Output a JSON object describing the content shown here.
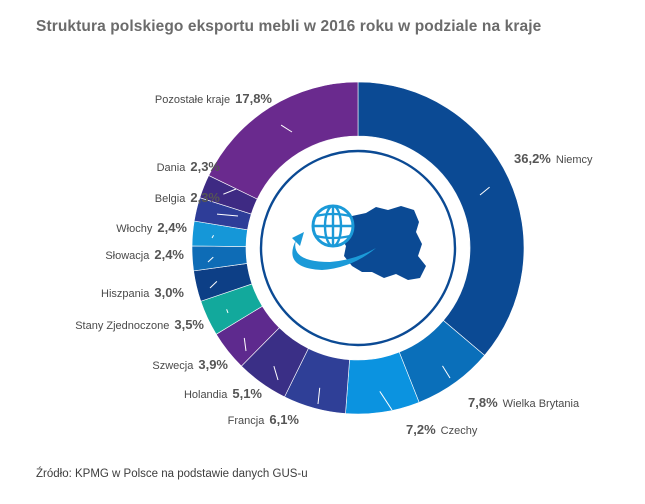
{
  "title": "Struktura polskiego eksportu mebli w 2016 roku w podziale na kraje",
  "source": "Źródło: KPMG w Polsce na podstawie danych GUS-u",
  "center_icon": "globe-and-poland-map-icon",
  "chart_data": {
    "type": "pie",
    "variant": "donut",
    "title": "Struktura polskiego eksportu mebli w 2016 roku w podziale na kraje",
    "slices": [
      {
        "label": "Niemcy",
        "value": 36.2,
        "display": "36,2%",
        "color": "#0b4a94"
      },
      {
        "label": "Wielka Brytania",
        "value": 7.8,
        "display": "7,8%",
        "color": "#0a6fba"
      },
      {
        "label": "Czechy",
        "value": 7.2,
        "display": "7,2%",
        "color": "#0b93e0"
      },
      {
        "label": "Francja",
        "value": 6.1,
        "display": "6,1%",
        "color": "#2f3f97"
      },
      {
        "label": "Holandia",
        "value": 5.1,
        "display": "5,1%",
        "color": "#3a2f86"
      },
      {
        "label": "Szwecja",
        "value": 3.9,
        "display": "3,9%",
        "color": "#5e2a8e"
      },
      {
        "label": "Stany Zjednoczone",
        "value": 3.5,
        "display": "3,5%",
        "color": "#12a99c"
      },
      {
        "label": "Hiszpania",
        "value": 3.0,
        "display": "3,0%",
        "color": "#0d3f86"
      },
      {
        "label": "Słowacja",
        "value": 2.4,
        "display": "2,4%",
        "color": "#0e6cb6"
      },
      {
        "label": "Włochy",
        "value": 2.4,
        "display": "2,4%",
        "color": "#1597d8"
      },
      {
        "label": "Belgia",
        "value": 2.3,
        "display": "2,3%",
        "color": "#2e3d98"
      },
      {
        "label": "Dania",
        "value": 2.3,
        "display": "2,3%",
        "color": "#3e2a83"
      },
      {
        "label": "Pozostałe kraje",
        "value": 17.8,
        "display": "17,8%",
        "color": "#6a2a8e"
      }
    ]
  }
}
